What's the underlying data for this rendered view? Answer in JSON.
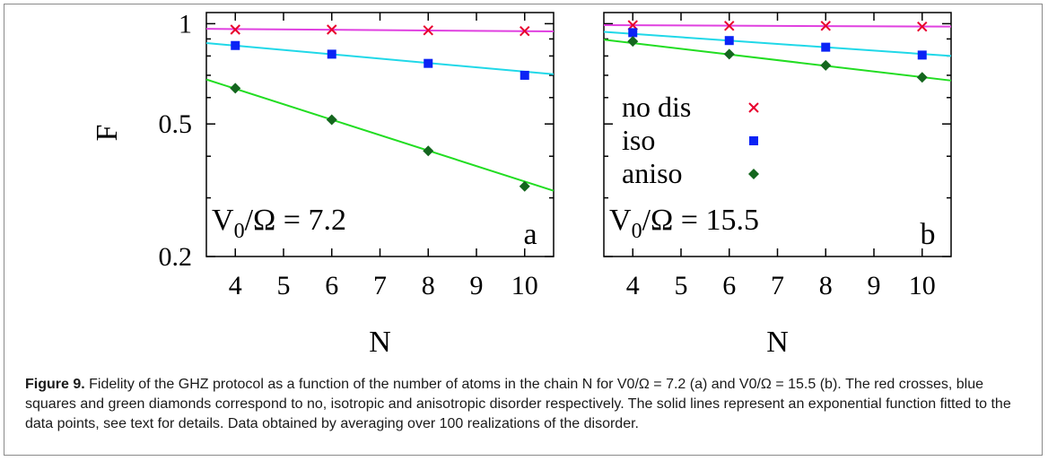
{
  "caption": {
    "label": "Figure 9.",
    "text": "Fidelity of the GHZ protocol as a function of the number of atoms in the chain N for V0/Ω = 7.2 (a) and V0/Ω = 15.5 (b). The red crosses, blue squares and green diamonds correspond to no, isotropic and anisotropic disorder respectively. The solid lines represent an exponential function fitted to the data points, see text for details. Data obtained by averaging over 100 realizations of the disorder."
  },
  "colors": {
    "no_dis_marker": "#e8002d",
    "iso_marker": "#0b23f5",
    "aniso_marker": "#14661e",
    "no_dis_fit": "#e040e0",
    "iso_fit": "#20d8e8",
    "aniso_fit": "#22dd22"
  },
  "legend": [
    {
      "label": "no dis",
      "marker": "cross"
    },
    {
      "label": "iso",
      "marker": "square"
    },
    {
      "label": "aniso",
      "marker": "diamond"
    }
  ],
  "chart_data": [
    {
      "type": "scatter",
      "panel": "a",
      "annotation": "V0/Ω = 7.2",
      "panel_letter": "a",
      "xlabel": "N",
      "ylabel": "F",
      "xlim": [
        3.4,
        10.6
      ],
      "ylim": [
        0.2,
        1.08
      ],
      "yscale": "log",
      "xticks": [
        4,
        5,
        6,
        7,
        8,
        9,
        10
      ],
      "yticks": [
        0.2,
        0.5,
        1
      ],
      "ytick_labels": [
        "0.2",
        "0.5",
        "1"
      ],
      "grid": false,
      "series": [
        {
          "name": "no dis",
          "marker": "cross",
          "x": [
            4,
            6,
            8,
            10
          ],
          "y": [
            0.96,
            0.96,
            0.955,
            0.95
          ],
          "fit": [
            0.965,
            0.948
          ]
        },
        {
          "name": "iso",
          "marker": "square",
          "x": [
            4,
            6,
            8,
            10
          ],
          "y": [
            0.86,
            0.81,
            0.76,
            0.7
          ],
          "fit": [
            0.875,
            0.705
          ]
        },
        {
          "name": "aniso",
          "marker": "diamond",
          "x": [
            4,
            6,
            8,
            10
          ],
          "y": [
            0.64,
            0.515,
            0.415,
            0.325
          ],
          "fit": [
            0.68,
            0.315
          ]
        }
      ]
    },
    {
      "type": "scatter",
      "panel": "b",
      "annotation": "V0/Ω = 15.5",
      "panel_letter": "b",
      "xlabel": "N",
      "ylabel": "",
      "xlim": [
        3.4,
        10.6
      ],
      "ylim": [
        0.2,
        1.08
      ],
      "yscale": "log",
      "xticks": [
        4,
        5,
        6,
        7,
        8,
        9,
        10
      ],
      "yticks": [
        0.2,
        0.5,
        1
      ],
      "ytick_labels": [],
      "grid": false,
      "legend_position": "right-middle",
      "series": [
        {
          "name": "no dis",
          "marker": "cross",
          "x": [
            4,
            6,
            8,
            10
          ],
          "y": [
            0.99,
            0.985,
            0.985,
            0.98
          ],
          "fit": [
            0.99,
            0.98
          ]
        },
        {
          "name": "iso",
          "marker": "square",
          "x": [
            4,
            6,
            8,
            10
          ],
          "y": [
            0.94,
            0.89,
            0.85,
            0.805
          ],
          "fit": [
            0.945,
            0.8
          ]
        },
        {
          "name": "aniso",
          "marker": "diamond",
          "x": [
            4,
            6,
            8,
            10
          ],
          "y": [
            0.885,
            0.81,
            0.75,
            0.69
          ],
          "fit": [
            0.895,
            0.675
          ]
        }
      ]
    }
  ]
}
